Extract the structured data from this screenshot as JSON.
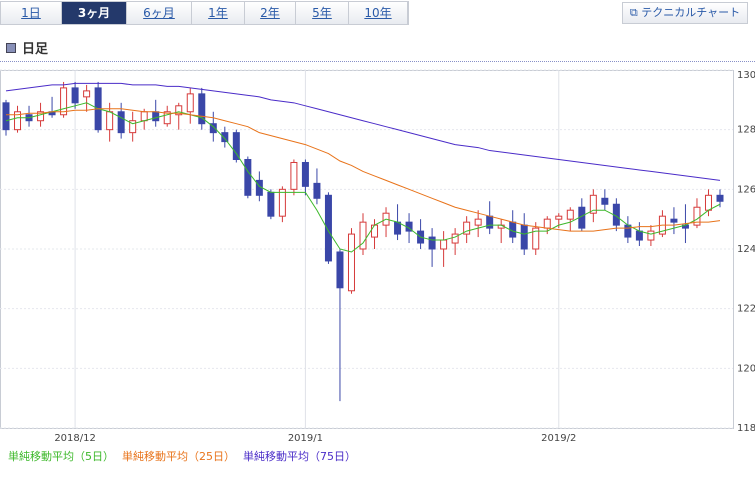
{
  "tabs": [
    "1日",
    "3ヶ月",
    "6ヶ月",
    "1年",
    "2年",
    "5年",
    "10年"
  ],
  "selected_tab": 1,
  "button": "テクニカルチャート",
  "heading": "日足",
  "chart_data": {
    "type": "candlestick",
    "categories": [
      null,
      null,
      null,
      null,
      null,
      null,
      "2018/12",
      null,
      null,
      null,
      null,
      null,
      null,
      null,
      null,
      null,
      null,
      null,
      null,
      null,
      null,
      null,
      null,
      null,
      null,
      null,
      "2019/1",
      null,
      null,
      null,
      null,
      null,
      null,
      null,
      null,
      null,
      null,
      null,
      null,
      null,
      null,
      null,
      null,
      null,
      null,
      null,
      null,
      null,
      "2019/2",
      null,
      null,
      null,
      null,
      null,
      null,
      null,
      null,
      null,
      null,
      null,
      null,
      null,
      null
    ],
    "open": [
      128.9,
      128.0,
      128.5,
      128.3,
      128.6,
      128.5,
      129.4,
      129.1,
      129.4,
      128.0,
      128.6,
      127.9,
      128.3,
      128.6,
      128.2,
      128.5,
      128.6,
      129.2,
      128.2,
      127.9,
      127.9,
      127.0,
      126.3,
      125.9,
      125.1,
      126.0,
      126.9,
      126.2,
      125.8,
      123.9,
      122.6,
      124.0,
      124.4,
      124.8,
      124.9,
      124.9,
      124.6,
      124.4,
      124.0,
      124.2,
      124.5,
      124.8,
      125.1,
      124.7,
      124.9,
      124.8,
      124.0,
      124.7,
      125.0,
      125.0,
      125.4,
      125.2,
      125.7,
      125.5,
      124.8,
      124.6,
      124.3,
      124.5,
      125.0,
      124.8,
      124.8,
      125.3,
      125.8
    ],
    "high": [
      129.0,
      128.8,
      128.8,
      128.9,
      129.1,
      129.6,
      129.6,
      129.5,
      129.6,
      128.9,
      128.9,
      128.6,
      128.7,
      129.0,
      128.8,
      128.9,
      129.4,
      129.4,
      128.6,
      128.1,
      128.0,
      127.1,
      126.6,
      126.0,
      126.1,
      127.0,
      127.0,
      126.7,
      125.9,
      124.0,
      124.7,
      125.2,
      125.0,
      125.4,
      125.5,
      125.2,
      125.0,
      124.7,
      124.6,
      124.7,
      125.1,
      125.3,
      125.6,
      125.0,
      125.3,
      125.2,
      124.9,
      125.1,
      125.2,
      125.4,
      125.7,
      126.0,
      126.0,
      125.7,
      125.1,
      124.9,
      124.8,
      125.3,
      125.4,
      125.5,
      125.7,
      126.0,
      126.0
    ],
    "low": [
      127.8,
      127.9,
      128.1,
      128.1,
      128.4,
      128.4,
      128.7,
      128.6,
      127.9,
      127.6,
      127.7,
      127.6,
      128.0,
      128.1,
      128.1,
      128.0,
      128.2,
      128.0,
      127.6,
      127.4,
      126.9,
      125.7,
      125.6,
      125.0,
      124.9,
      125.8,
      125.8,
      125.5,
      123.5,
      118.9,
      122.5,
      123.8,
      124.0,
      124.4,
      124.3,
      124.2,
      124.0,
      123.4,
      123.4,
      123.8,
      124.2,
      124.4,
      124.5,
      124.2,
      124.2,
      123.8,
      123.8,
      124.5,
      124.7,
      124.6,
      124.6,
      124.9,
      125.3,
      124.6,
      124.2,
      124.1,
      124.1,
      124.4,
      124.5,
      124.2,
      124.7,
      125.1,
      125.4
    ],
    "close": [
      128.0,
      128.6,
      128.3,
      128.6,
      128.5,
      129.4,
      128.9,
      129.3,
      128.0,
      128.6,
      127.9,
      128.3,
      128.6,
      128.3,
      128.6,
      128.8,
      129.2,
      128.2,
      127.9,
      127.6,
      127.0,
      125.8,
      125.8,
      125.1,
      126.0,
      126.9,
      126.1,
      125.7,
      123.6,
      122.7,
      124.5,
      124.9,
      124.8,
      125.2,
      124.5,
      124.6,
      124.2,
      124.0,
      124.3,
      124.5,
      124.9,
      125.0,
      124.7,
      124.8,
      124.4,
      124.0,
      124.7,
      125.0,
      125.1,
      125.3,
      124.7,
      125.8,
      125.5,
      124.8,
      124.4,
      124.3,
      124.6,
      125.1,
      124.9,
      124.7,
      125.4,
      125.8,
      125.6
    ],
    "up_color": "#d63a3a",
    "down_color": "#3a47a8",
    "series": [
      {
        "name": "単純移動平均（5日）",
        "color": "#3cb82a",
        "values": [
          128.3,
          128.4,
          128.4,
          128.5,
          128.6,
          128.7,
          128.8,
          128.9,
          128.7,
          128.6,
          128.4,
          128.2,
          128.3,
          128.4,
          128.5,
          128.6,
          128.5,
          128.4,
          128.1,
          127.7,
          127.2,
          126.6,
          126.1,
          125.9,
          125.9,
          125.9,
          125.9,
          125.3,
          124.6,
          124.0,
          123.9,
          124.2,
          124.8,
          125.0,
          124.9,
          124.7,
          124.4,
          124.3,
          124.3,
          124.4,
          124.6,
          124.7,
          124.8,
          124.8,
          124.6,
          124.5,
          124.6,
          124.6,
          124.8,
          124.9,
          125.1,
          125.3,
          125.3,
          125.1,
          124.8,
          124.6,
          124.5,
          124.6,
          124.7,
          124.8,
          125.0,
          125.3,
          125.5
        ]
      },
      {
        "name": "単純移動平均（25日）",
        "color": "#e8731a",
        "values": [
          128.5,
          128.5,
          128.55,
          128.55,
          128.6,
          128.6,
          128.65,
          128.65,
          128.7,
          128.7,
          128.7,
          128.65,
          128.6,
          128.6,
          128.55,
          128.55,
          128.5,
          128.45,
          128.4,
          128.3,
          128.2,
          128.1,
          127.9,
          127.8,
          127.7,
          127.6,
          127.5,
          127.35,
          127.2,
          126.95,
          126.8,
          126.6,
          126.45,
          126.3,
          126.15,
          126.0,
          125.85,
          125.7,
          125.55,
          125.4,
          125.3,
          125.2,
          125.1,
          125.0,
          124.9,
          124.8,
          124.75,
          124.7,
          124.65,
          124.6,
          124.6,
          124.6,
          124.65,
          124.7,
          124.7,
          124.75,
          124.75,
          124.8,
          124.8,
          124.85,
          124.9,
          124.9,
          124.95
        ]
      },
      {
        "name": "単純移動平均（75日）",
        "color": "#4a2cc8",
        "values": [
          129.3,
          129.35,
          129.4,
          129.45,
          129.5,
          129.5,
          129.55,
          129.55,
          129.55,
          129.55,
          129.55,
          129.5,
          129.5,
          129.5,
          129.45,
          129.45,
          129.4,
          129.35,
          129.3,
          129.25,
          129.2,
          129.15,
          129.1,
          129.0,
          128.95,
          128.9,
          128.8,
          128.7,
          128.6,
          128.5,
          128.4,
          128.3,
          128.2,
          128.1,
          128.0,
          127.9,
          127.8,
          127.7,
          127.6,
          127.5,
          127.45,
          127.4,
          127.3,
          127.25,
          127.2,
          127.15,
          127.1,
          127.05,
          127.0,
          126.95,
          126.9,
          126.85,
          126.8,
          126.75,
          126.7,
          126.65,
          126.6,
          126.55,
          126.5,
          126.45,
          126.4,
          126.35,
          126.3
        ]
      }
    ],
    "ylim": [
      118,
      130
    ],
    "yticks": [
      118,
      120,
      122,
      124,
      126,
      128,
      130
    ],
    "grid": true
  }
}
